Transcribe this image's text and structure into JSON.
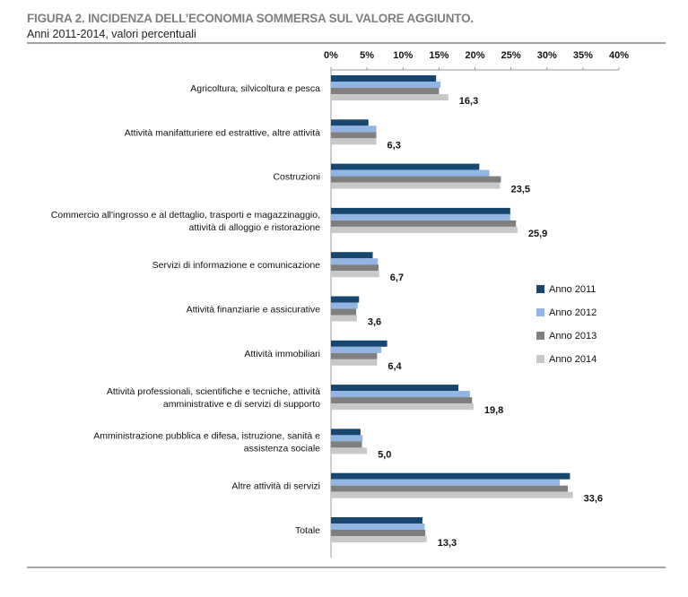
{
  "header": {
    "title": "FIGURA 2. INCIDENZA DELL’ECONOMIA SOMMERSA SUL VALORE AGGIUNTO.",
    "subtitle": "Anni 2011-2014, valori percentuali"
  },
  "chart_data": {
    "type": "bar",
    "orientation": "horizontal",
    "xlim": [
      0,
      40
    ],
    "ticks": [
      "0%",
      "5%",
      "10%",
      "15%",
      "20%",
      "25%",
      "30%",
      "35%",
      "40%"
    ],
    "tick_values": [
      0,
      5,
      10,
      15,
      20,
      25,
      30,
      35,
      40
    ],
    "legend_position": "right",
    "categories": [
      [
        "Agricoltura, silvicoltura e pesca"
      ],
      [
        "Attività manifatturiere ed estrattive, altre attività"
      ],
      [
        "Costruzioni"
      ],
      [
        "Commercio all'ingrosso e al dettaglio, trasporti e magazzinaggio,",
        "attività di alloggio e ristorazione"
      ],
      [
        "Servizi di informazione e comunicazione"
      ],
      [
        "Attività finanziarie e assicurative"
      ],
      [
        "Attività immobiliari"
      ],
      [
        "Attività professionali, scientifiche e tecniche, attività",
        "amministrative e di servizi di supporto"
      ],
      [
        "Amministrazione pubblica e difesa, istruzione, sanità e",
        "assistenza sociale"
      ],
      [
        "Altre attività di servizi"
      ],
      [
        "Totale"
      ]
    ],
    "series": [
      {
        "name": "Anno 2011",
        "color": "#17476f",
        "values": [
          14.6,
          5.2,
          20.6,
          24.9,
          5.8,
          3.9,
          7.8,
          17.7,
          4.1,
          33.2,
          12.7
        ]
      },
      {
        "name": "Anno 2012",
        "color": "#92b5e3",
        "values": [
          15.2,
          6.3,
          22.0,
          24.9,
          6.5,
          3.7,
          7.0,
          19.3,
          4.4,
          31.8,
          13.0
        ]
      },
      {
        "name": "Anno 2013",
        "color": "#7f7f7f",
        "values": [
          15.0,
          6.3,
          23.6,
          25.7,
          6.6,
          3.5,
          6.4,
          19.6,
          4.3,
          32.9,
          13.1
        ]
      },
      {
        "name": "Anno 2014",
        "color": "#c8c8c8",
        "values": [
          16.3,
          6.3,
          23.5,
          25.9,
          6.7,
          3.6,
          6.4,
          19.8,
          5.0,
          33.6,
          13.3
        ]
      }
    ],
    "data_labels": [
      "16,3",
      "6,3",
      "23,5",
      "25,9",
      "6,7",
      "3,6",
      "6,4",
      "19,8",
      "5,0",
      "33,6",
      "13,3"
    ]
  }
}
